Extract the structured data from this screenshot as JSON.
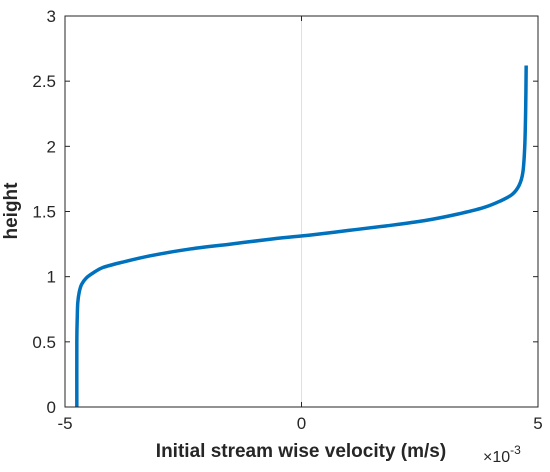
{
  "chart_data": {
    "type": "line",
    "title": "",
    "xlabel": "Initial stream wise velocity (m/s)",
    "ylabel": "height",
    "x_scale_factor": {
      "base": "10",
      "exponent": "-3"
    },
    "xlim": [
      -5,
      5
    ],
    "ylim": [
      0,
      3
    ],
    "x_ticks": [
      -5,
      0,
      5
    ],
    "x_tick_labels": [
      "-5",
      "0",
      "5"
    ],
    "y_ticks": [
      0,
      0.5,
      1,
      1.5,
      2,
      2.5,
      3
    ],
    "y_tick_labels": [
      "0",
      "0.5",
      "1",
      "1.5",
      "2",
      "2.5",
      "3"
    ],
    "grid": "x-only",
    "legend": "none",
    "series": [
      {
        "color": "#0072BD",
        "x": [
          -4.75,
          -4.75,
          -4.74,
          -4.73,
          -4.7,
          -4.65,
          -4.55,
          -4.4,
          -4.2,
          -3.8,
          -3.2,
          -2.4,
          -1.5,
          -0.6,
          0.2,
          1.0,
          1.8,
          2.6,
          3.3,
          3.85,
          4.2,
          4.45,
          4.6,
          4.68,
          4.72,
          4.74,
          4.75
        ],
        "y": [
          0,
          0.5,
          0.7,
          0.8,
          0.88,
          0.94,
          0.99,
          1.03,
          1.07,
          1.11,
          1.16,
          1.21,
          1.25,
          1.29,
          1.32,
          1.355,
          1.39,
          1.43,
          1.48,
          1.53,
          1.58,
          1.63,
          1.7,
          1.8,
          2.0,
          2.3,
          2.62
        ]
      }
    ]
  }
}
